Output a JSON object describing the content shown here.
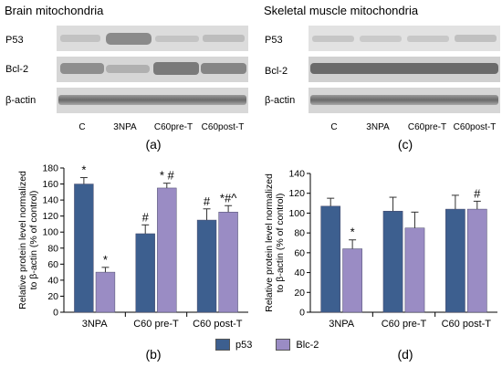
{
  "panels": {
    "left_title": "Brain mitochondria",
    "right_title": "Skeletal muscle mitochondria",
    "blot_rows": [
      "P53",
      "Bcl-2",
      "β-actin"
    ],
    "lanes": [
      "C",
      "3NPA",
      "C60pre-T",
      "C60post-T"
    ],
    "letters": {
      "a": "(a)",
      "b": "(b)",
      "c": "(c)",
      "d": "(d)"
    }
  },
  "colors": {
    "p53": "#3d5f8f",
    "blc2": "#9a8cc4"
  },
  "legend": {
    "p53": "p53",
    "blc2": "Blc-2"
  },
  "chart_data": [
    {
      "type": "bar",
      "ylabel": "Relative protein level normalized to β-actin (% of control)",
      "ylim": [
        0,
        180
      ],
      "yticks": [
        0,
        20,
        40,
        60,
        80,
        100,
        120,
        140,
        160,
        180
      ],
      "categories": [
        "3NPA",
        "C60 pre-T",
        "C60 post-T"
      ],
      "series": [
        {
          "name": "p53",
          "values": [
            160,
            98,
            115
          ],
          "errors": [
            8,
            11,
            14
          ],
          "marks": [
            "*",
            "#",
            "#"
          ]
        },
        {
          "name": "Blc-2",
          "values": [
            50,
            155,
            125
          ],
          "errors": [
            6,
            6,
            8
          ],
          "marks": [
            "*",
            "* #",
            "*#^"
          ]
        }
      ]
    },
    {
      "type": "bar",
      "ylabel": "Relative protein level normalized to β-actin (% of control)",
      "ylim": [
        0,
        140
      ],
      "yticks": [
        0,
        20,
        40,
        60,
        80,
        100,
        120,
        140
      ],
      "categories": [
        "3NPA",
        "C60 pre-T",
        "C60 post-T"
      ],
      "series": [
        {
          "name": "p53",
          "values": [
            107,
            102,
            104
          ],
          "errors": [
            8,
            14,
            14
          ],
          "marks": [
            "",
            "",
            ""
          ]
        },
        {
          "name": "Blc-2",
          "values": [
            64,
            85,
            104
          ],
          "errors": [
            9,
            16,
            8
          ],
          "marks": [
            "*",
            "",
            "#"
          ]
        }
      ]
    }
  ]
}
